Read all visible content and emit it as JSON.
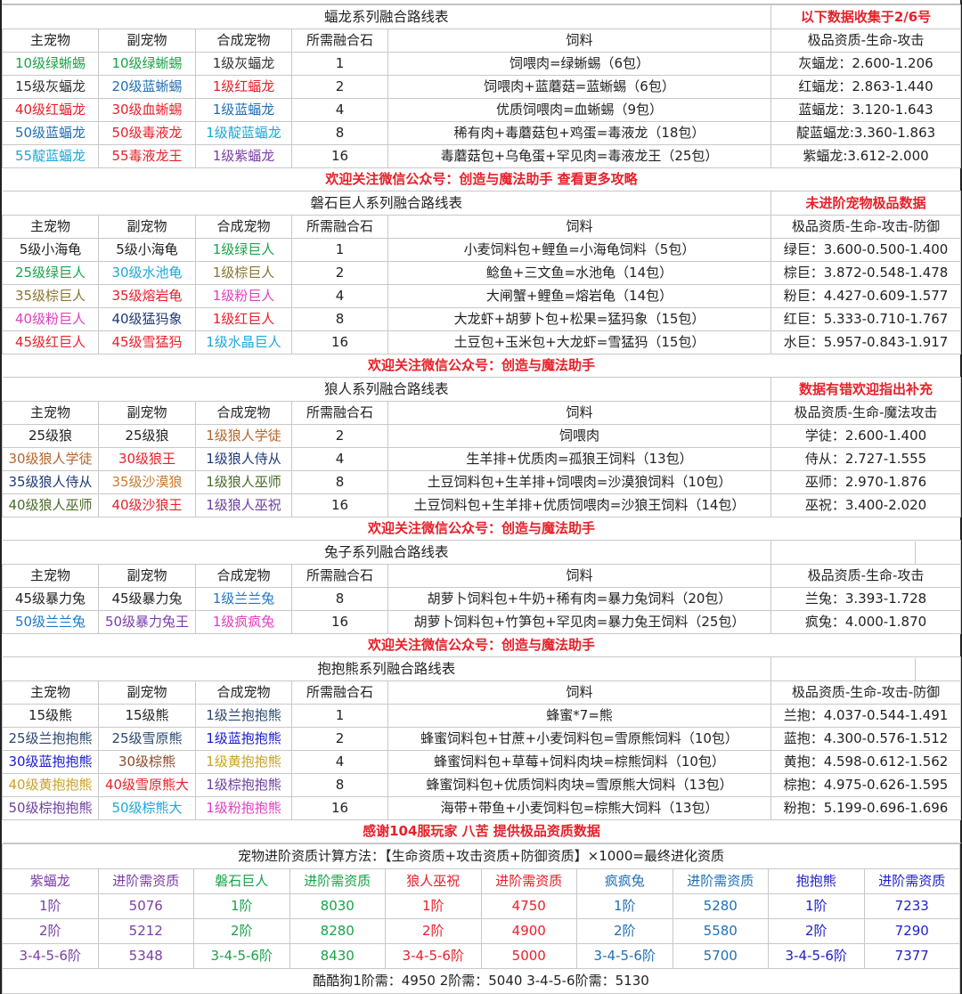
{
  "headers": [
    "主宠物",
    "副宠物",
    "合成宠物",
    "所需融合石",
    "饲料"
  ],
  "sections": [
    {
      "title": "蝠龙系列融合路线表",
      "note": "以下数据收集于2/6号",
      "split": false,
      "quality_header": "极品资质-生命-攻击",
      "rows": [
        {
          "main": {
            "text": "10级绿蜥蜴",
            "color": "#1aa34a"
          },
          "sub": {
            "text": "10级绿蜥蜴",
            "color": "#1aa34a"
          },
          "result": {
            "text": "1级灰蝠龙",
            "color": "#333333"
          },
          "stones": "1",
          "feed": "饲喂肉=绿蜥蜴（6包）",
          "quality": "灰蝠龙：2.600-1.206"
        },
        {
          "main": {
            "text": "15级灰蝠龙",
            "color": "#333333"
          },
          "sub": {
            "text": "20级蓝蜥蜴",
            "color": "#1f6fb5"
          },
          "result": {
            "text": "1级红蝠龙",
            "color": "#e8202a"
          },
          "stones": "2",
          "feed": "饲喂肉+蓝蘑菇=蓝蜥蜴（6包）",
          "quality": "红蝠龙：2.863-1.440"
        },
        {
          "main": {
            "text": "40级红蝠龙",
            "color": "#e8202a"
          },
          "sub": {
            "text": "30级血蜥蜴",
            "color": "#e8202a"
          },
          "result": {
            "text": "1级蓝蝠龙",
            "color": "#1f6fb5"
          },
          "stones": "4",
          "feed": "优质饲喂肉=血蜥蜴（9包）",
          "quality": "蓝蝠龙：3.120-1.643"
        },
        {
          "main": {
            "text": "50级蓝蝠龙",
            "color": "#1f6fb5"
          },
          "sub": {
            "text": "50级毒液龙",
            "color": "#e8202a"
          },
          "result": {
            "text": "1级靛蓝蝠龙",
            "color": "#1ea7d8"
          },
          "stones": "8",
          "feed": "稀有肉+毒蘑菇包+鸡蛋=毒液龙（18包）",
          "quality": "靛蓝蝠龙:3.360-1.863"
        },
        {
          "main": {
            "text": "55靛蓝蝠龙",
            "color": "#1ea7d8"
          },
          "sub": {
            "text": "55毒液龙王",
            "color": "#e8202a"
          },
          "result": {
            "text": "1级紫蝠龙",
            "color": "#7a3ea8"
          },
          "stones": "16",
          "feed": "毒蘑菇包+乌龟蛋+罕见肉=毒液龙王（25包）",
          "quality": "紫蝠龙:3.612-2.000"
        }
      ],
      "notice": "欢迎关注微信公众号：创造与魔法助手  查看更多攻略"
    },
    {
      "title": "磐石巨人系列融合路线表",
      "note": "未进阶宠物极品数据",
      "split": false,
      "quality_header": "极品资质-生命-攻击-防御",
      "rows": [
        {
          "main": {
            "text": "5级小海龟",
            "color": "#222222"
          },
          "sub": {
            "text": "5级小海龟",
            "color": "#222222"
          },
          "result": {
            "text": "1级绿巨人",
            "color": "#1aa34a"
          },
          "stones": "1",
          "feed": "小麦饲料包+鲤鱼=小海龟饲料（5包）",
          "quality": "绿巨：3.600-0.500-1.400"
        },
        {
          "main": {
            "text": "25级绿巨人",
            "color": "#1aa34a"
          },
          "sub": {
            "text": "30级水池龟",
            "color": "#1ea7d8"
          },
          "result": {
            "text": "1级棕巨人",
            "color": "#8a7430"
          },
          "stones": "2",
          "feed": "鲶鱼+三文鱼=水池龟（14包）",
          "quality": "棕巨：3.872-0.548-1.478"
        },
        {
          "main": {
            "text": "35级棕巨人",
            "color": "#8a7430"
          },
          "sub": {
            "text": "35级熔岩龟",
            "color": "#e8202a"
          },
          "result": {
            "text": "1级粉巨人",
            "color": "#e040c0"
          },
          "stones": "4",
          "feed": "大闸蟹+鲤鱼=熔岩龟（14包）",
          "quality": "粉巨：4.427-0.609-1.577"
        },
        {
          "main": {
            "text": "40级粉巨人",
            "color": "#e040c0"
          },
          "sub": {
            "text": "40级猛犸象",
            "color": "#1f3a78"
          },
          "result": {
            "text": "1级红巨人",
            "color": "#e8202a"
          },
          "stones": "8",
          "feed": "大龙虾+胡萝卜包+松果=猛犸象（15包）",
          "quality": "红巨：5.333-0.710-1.767"
        },
        {
          "main": {
            "text": "45级红巨人",
            "color": "#e8202a"
          },
          "sub": {
            "text": "45级雪猛犸",
            "color": "#e8202a"
          },
          "result": {
            "text": "1级水晶巨人",
            "color": "#1ea7d8"
          },
          "stones": "16",
          "feed": "土豆包+玉米包+大龙虾=雪猛犸（15包）",
          "quality": "水巨：5.957-0.843-1.917"
        }
      ],
      "notice": "欢迎关注微信公众号：创造与魔法助手"
    },
    {
      "title": "狼人系列融合路线表",
      "note": "数据有错欢迎指出补充",
      "split": false,
      "quality_header": "极品资质-生命-魔法攻击",
      "rows": [
        {
          "main": {
            "text": "25级狼",
            "color": "#222222"
          },
          "sub": {
            "text": "25级狼",
            "color": "#222222"
          },
          "result": {
            "text": "1级狼人学徒",
            "color": "#b5652a"
          },
          "stones": "2",
          "feed": "饲喂肉",
          "quality": "学徒：2.600-1.400"
        },
        {
          "main": {
            "text": "30级狼人学徒",
            "color": "#b5652a"
          },
          "sub": {
            "text": "30级狼王",
            "color": "#e8202a"
          },
          "result": {
            "text": "1级狼人侍从",
            "color": "#1f3a78"
          },
          "stones": "4",
          "feed": "生羊排+优质肉=孤狼王饲料（13包）",
          "quality": "侍从：2.727-1.555"
        },
        {
          "main": {
            "text": "35级狼人侍从",
            "color": "#1f3a78"
          },
          "sub": {
            "text": "35级沙漠狼",
            "color": "#c77a30"
          },
          "result": {
            "text": "1级狼人巫师",
            "color": "#4a6b2a"
          },
          "stones": "8",
          "feed": "土豆饲料包+生羊排+饲喂肉=沙漠狼饲料（10包）",
          "quality": "巫师：2.970-1.876"
        },
        {
          "main": {
            "text": "40级狼人巫师",
            "color": "#4a6b2a"
          },
          "sub": {
            "text": "40级沙狼王",
            "color": "#e8202a"
          },
          "result": {
            "text": "1级狼人巫祝",
            "color": "#6b3fa0"
          },
          "stones": "16",
          "feed": "土豆饲料包+生羊排+优质饲喂肉=沙狼王饲料（14包）",
          "quality": "巫祝：3.400-2.020"
        }
      ],
      "notice": "欢迎关注微信公众号：创造与魔法助手"
    },
    {
      "title": "兔子系列融合路线表",
      "note": "",
      "split": true,
      "quality_header": "极品资质-生命-攻击",
      "rows": [
        {
          "main": {
            "text": "45级暴力兔",
            "color": "#222222"
          },
          "sub": {
            "text": "45级暴力兔",
            "color": "#222222"
          },
          "result": {
            "text": "1级兰兰兔",
            "color": "#1f78c8"
          },
          "stones": "8",
          "feed": "胡萝卜饲料包+牛奶+稀有肉=暴力兔饲料（20包）",
          "quality": "兰兔：3.393-1.728"
        },
        {
          "main": {
            "text": "50级兰兰兔",
            "color": "#1f78c8"
          },
          "sub": {
            "text": "50级暴力兔王",
            "color": "#7a3ea8"
          },
          "result": {
            "text": "1级疯疯兔",
            "color": "#e040c0"
          },
          "stones": "16",
          "feed": "胡萝卜饲料包+竹笋包+罕见肉=暴力兔王饲料（25包）",
          "quality": "疯兔：4.000-1.870"
        }
      ],
      "notice": "欢迎关注微信公众号：创造与魔法助手"
    },
    {
      "title": "抱抱熊系列融合路线表",
      "note": "",
      "split": true,
      "quality_header": "极品资质-生命-攻击-防御",
      "rows": [
        {
          "main": {
            "text": "15级熊",
            "color": "#222222"
          },
          "sub": {
            "text": "15级熊",
            "color": "#222222"
          },
          "result": {
            "text": "1级兰抱抱熊",
            "color": "#2c4870"
          },
          "stones": "1",
          "feed": "蜂蜜*7=熊",
          "quality": "兰抱：4.037-0.544-1.491"
        },
        {
          "main": {
            "text": "25级兰抱抱熊",
            "color": "#2c4870"
          },
          "sub": {
            "text": "25级雪原熊",
            "color": "#2c4870"
          },
          "result": {
            "text": "1级蓝抱抱熊",
            "color": "#1a1ad0"
          },
          "stones": "2",
          "feed": "蜂蜜饲料包+甘蔗+小麦饲料包=雪原熊饲料（10包）",
          "quality": "蓝抱：4.300-0.576-1.512"
        },
        {
          "main": {
            "text": "30级蓝抱抱熊",
            "color": "#1a1ad0"
          },
          "sub": {
            "text": "30级棕熊",
            "color": "#8b4a2a"
          },
          "result": {
            "text": "1级黄抱抱熊",
            "color": "#c9a227"
          },
          "stones": "4",
          "feed": "蜂蜜饲料包+草莓+饲料肉块=棕熊饲料（10包）",
          "quality": "黄抱：4.598-0.612-1.562"
        },
        {
          "main": {
            "text": "40级黄抱抱熊",
            "color": "#c9a227"
          },
          "sub": {
            "text": "40级雪原熊大",
            "color": "#e8202a"
          },
          "result": {
            "text": "1级棕抱抱熊",
            "color": "#6b3fa0"
          },
          "stones": "8",
          "feed": "蜂蜜饲料包+优质饲料肉块=雪原熊大饲料（13包）",
          "quality": "棕抱：4.975-0.626-1.595"
        },
        {
          "main": {
            "text": "50级棕抱抱熊",
            "color": "#6b3fa0"
          },
          "sub": {
            "text": "50级棕熊大",
            "color": "#1ea7d8"
          },
          "result": {
            "text": "1级粉抱抱熊",
            "color": "#e040c0"
          },
          "stones": "16",
          "feed": "海带+带鱼+小麦饲料包=棕熊大饲料（13包）",
          "quality": "粉抱：5.199-0.696-1.696"
        }
      ],
      "notice": "感谢104服玩家 八苦 提供极品资质数据"
    }
  ],
  "evolution": {
    "formula": "宠物进阶资质计算方法：【生命资质+攻击资质+防御资质】×1000=最终进化资质",
    "groups": [
      {
        "pet": "紫蝠龙",
        "label": "进阶需资质",
        "color": "#7a3ea8",
        "rows": [
          [
            "1阶",
            "5076"
          ],
          [
            "2阶",
            "5212"
          ],
          [
            "3-4-5-6阶",
            "5348"
          ]
        ]
      },
      {
        "pet": "磐石巨人",
        "label": "进阶需资质",
        "color": "#1aa34a",
        "rows": [
          [
            "1阶",
            "8030"
          ],
          [
            "2阶",
            "8280"
          ],
          [
            "3-4-5-6阶",
            "8430"
          ]
        ]
      },
      {
        "pet": "狼人巫祝",
        "label": "进阶需资质",
        "color": "#e8202a",
        "rows": [
          [
            "1阶",
            "4750"
          ],
          [
            "2阶",
            "4900"
          ],
          [
            "3-4-5-6阶",
            "5000"
          ]
        ]
      },
      {
        "pet": "疯疯兔",
        "label": "进阶需资质",
        "color": "#1f6fb5",
        "rows": [
          [
            "1阶",
            "5280"
          ],
          [
            "2阶",
            "5580"
          ],
          [
            "3-4-5-6阶",
            "5700"
          ]
        ]
      },
      {
        "pet": "抱抱熊",
        "label": "进阶需资质",
        "color": "#2020c8",
        "rows": [
          [
            "1阶",
            "7233"
          ],
          [
            "2阶",
            "7290"
          ],
          [
            "3-4-5-6阶",
            "7377"
          ]
        ]
      }
    ],
    "footer": "酷酷狗1阶需：4950   2阶需：5040   3-4-5-6阶需：5130"
  }
}
